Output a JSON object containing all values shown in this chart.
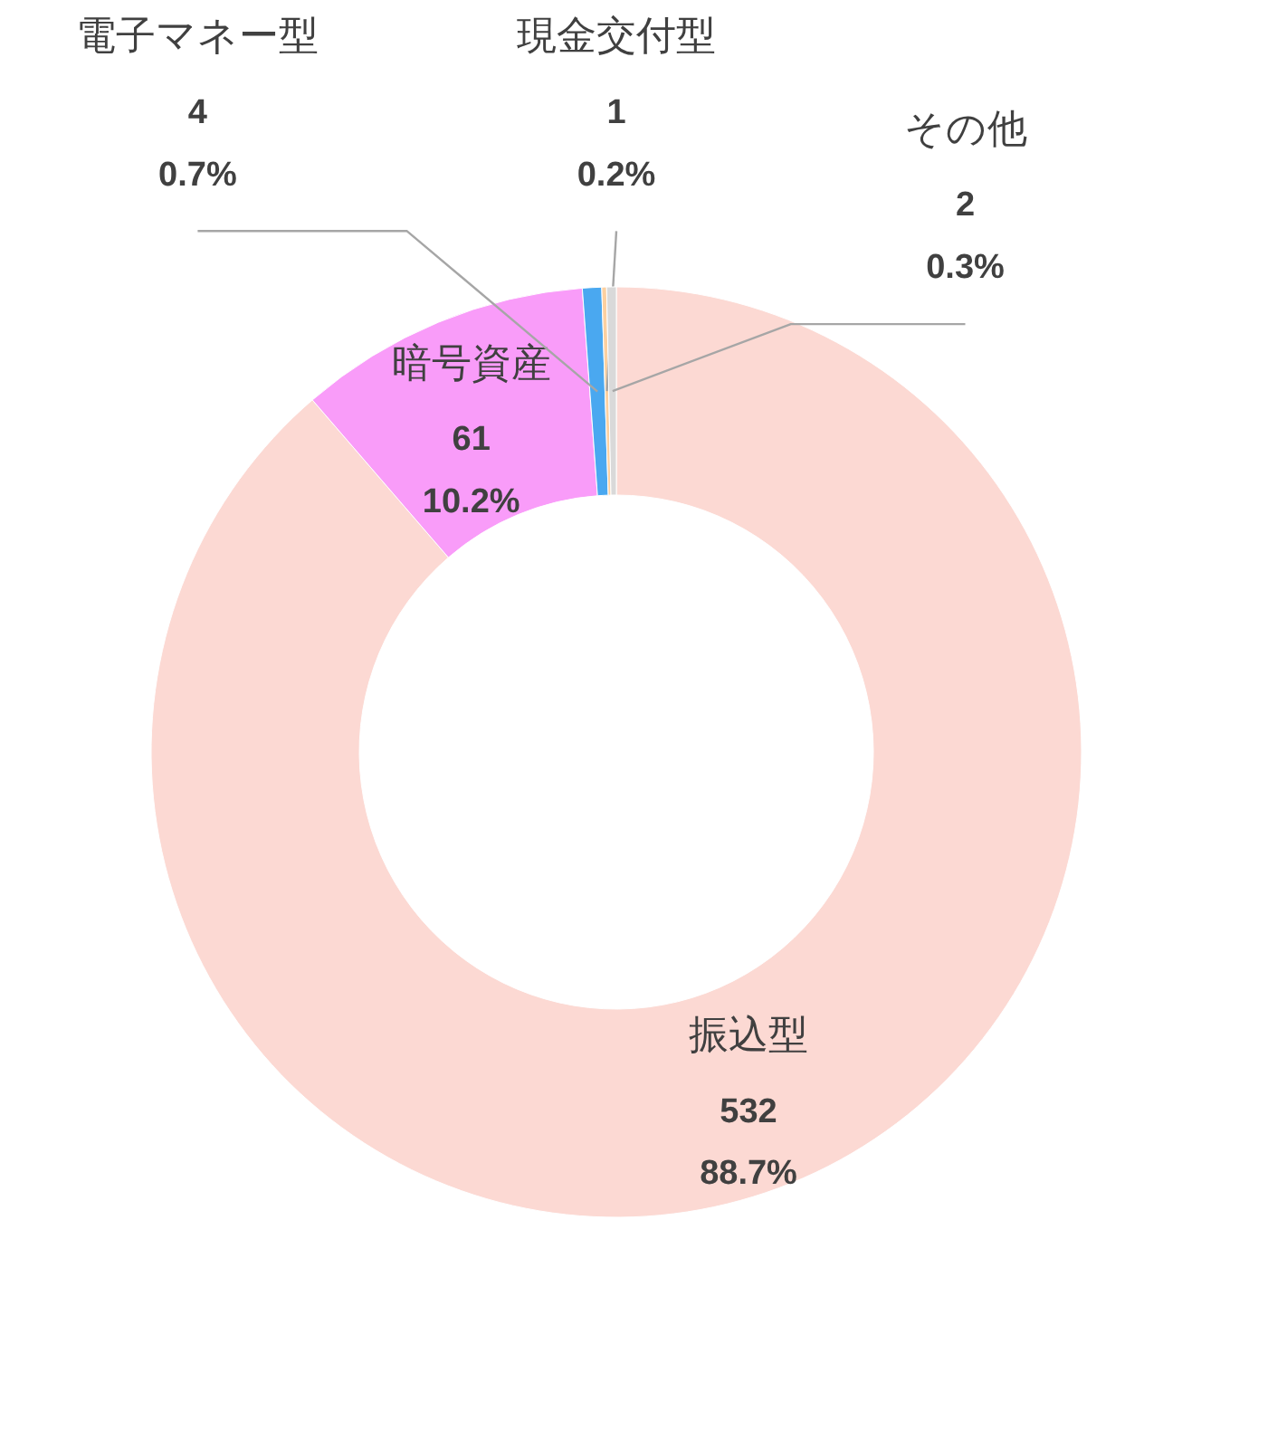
{
  "chart_data": {
    "type": "donut",
    "categories": [
      "振込型",
      "暗号資産",
      "電子マネー型",
      "現金交付型",
      "その他"
    ],
    "values": [
      532,
      61,
      4,
      1,
      2
    ],
    "colors": [
      "#fcd9d3",
      "#f99cf9",
      "#4aa8f0",
      "#fcd0a0",
      "#d9d9d9"
    ],
    "value_labels": [
      "532\n88.7%",
      "61\n10.2%",
      "4\n0.7%",
      "1\n0.2%",
      "2\n0.3%"
    ]
  }
}
